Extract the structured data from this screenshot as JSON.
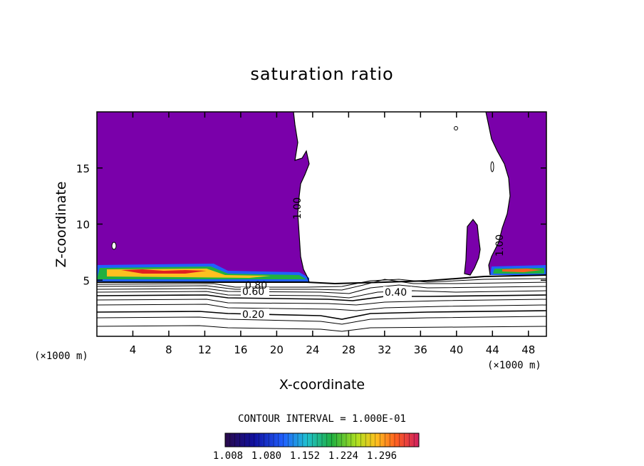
{
  "chart_data": {
    "type": "contour",
    "title": "saturation ratio",
    "xlabel": "X-coordinate",
    "ylabel": "Z-coordinate",
    "x_unit": "(×1000 m)",
    "xlim": [
      0,
      50
    ],
    "ylim": [
      0,
      20
    ],
    "x_ticks": [
      4,
      8,
      12,
      16,
      20,
      24,
      28,
      32,
      36,
      40,
      44,
      48
    ],
    "y_ticks": [
      5,
      10,
      15
    ],
    "contour_interval": "CONTOUR INTERVAL = 1.000E-01",
    "contour_labels": [
      {
        "text": "0.20",
        "x": 17.5,
        "y": 2.0
      },
      {
        "text": "0.60",
        "x": 17.5,
        "y": 4.0
      },
      {
        "text": "0.80",
        "x": 17.5,
        "y": 4.6
      },
      {
        "text": "0.40",
        "x": 33.5,
        "y": 3.9
      },
      {
        "text": "1.00",
        "x": 23.0,
        "y": 11.5
      },
      {
        "text": "1.00",
        "x": 44.5,
        "y": 8.0
      }
    ],
    "colorbar": {
      "min": 1.008,
      "max": 1.296,
      "labels": [
        "1.008",
        "1.080",
        "1.152",
        "1.224",
        "1.296"
      ],
      "colors": [
        "#2a0a5a",
        "#1a1aa8",
        "#2a6aff",
        "#20c0e0",
        "#20c060",
        "#a0e020",
        "#ffe020",
        "#ff8020",
        "#e02020",
        "#c03070"
      ]
    },
    "saturated_fill_color": "#7a00aa"
  }
}
